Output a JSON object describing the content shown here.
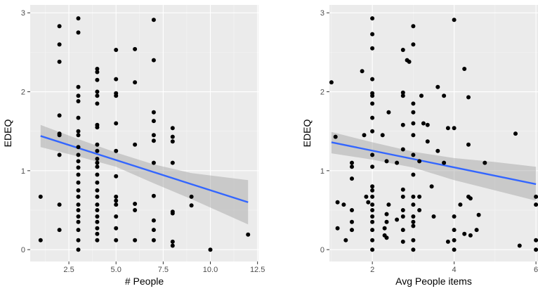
{
  "chart_data": [
    {
      "type": "scatter",
      "xlabel": "# People",
      "ylabel": "EDEQ",
      "xlim": [
        0.45,
        12.55
      ],
      "ylim": [
        -0.15,
        3.1
      ],
      "x_ticks": [
        2.5,
        5.0,
        7.5,
        10.0,
        12.5
      ],
      "x_tick_labels": [
        "2.5",
        "5.0",
        "7.5",
        "10.0",
        "12.5"
      ],
      "y_ticks": [
        0,
        1,
        2,
        3
      ],
      "y_tick_labels": [
        "0",
        "1",
        "2",
        "3"
      ],
      "grid": true,
      "points": [
        [
          1,
          0.67
        ],
        [
          1,
          0.12
        ],
        [
          2,
          2.83
        ],
        [
          2,
          2.6
        ],
        [
          2,
          2.38
        ],
        [
          2,
          1.7
        ],
        [
          2,
          1.47
        ],
        [
          2,
          1.45
        ],
        [
          2,
          1.2
        ],
        [
          2,
          0.57
        ],
        [
          2,
          0.25
        ],
        [
          3,
          2.93
        ],
        [
          3,
          2.75
        ],
        [
          3,
          2.06
        ],
        [
          3,
          1.95
        ],
        [
          3,
          1.88
        ],
        [
          3,
          1.67
        ],
        [
          3,
          1.5
        ],
        [
          3,
          1.45
        ],
        [
          3,
          1.3
        ],
        [
          3,
          1.2
        ],
        [
          3,
          1.12
        ],
        [
          3,
          1.04
        ],
        [
          3,
          0.95
        ],
        [
          3,
          0.85
        ],
        [
          3,
          0.75
        ],
        [
          3,
          0.67
        ],
        [
          3,
          0.57
        ],
        [
          3,
          0.5
        ],
        [
          3,
          0.42
        ],
        [
          3,
          0.35
        ],
        [
          3,
          0.25
        ],
        [
          3,
          0.12
        ],
        [
          3,
          0.0
        ],
        [
          4,
          2.29
        ],
        [
          4,
          2.25
        ],
        [
          4,
          2.15
        ],
        [
          4,
          2.0
        ],
        [
          4,
          1.95
        ],
        [
          4,
          1.85
        ],
        [
          4,
          1.58
        ],
        [
          4,
          1.55
        ],
        [
          4,
          1.33
        ],
        [
          4,
          1.25
        ],
        [
          4,
          1.15
        ],
        [
          4,
          1.1
        ],
        [
          4,
          1.05
        ],
        [
          4,
          0.95
        ],
        [
          4,
          0.85
        ],
        [
          4,
          0.75
        ],
        [
          4,
          0.67
        ],
        [
          4,
          0.57
        ],
        [
          4,
          0.5
        ],
        [
          4,
          0.42
        ],
        [
          4,
          0.35
        ],
        [
          4,
          0.27
        ],
        [
          4,
          0.2
        ],
        [
          4,
          0.12
        ],
        [
          5,
          2.53
        ],
        [
          5,
          2.16
        ],
        [
          5,
          1.98
        ],
        [
          5,
          1.95
        ],
        [
          5,
          1.6
        ],
        [
          5,
          1.25
        ],
        [
          5,
          0.93
        ],
        [
          5,
          0.67
        ],
        [
          5,
          0.62
        ],
        [
          5,
          0.57
        ],
        [
          5,
          0.42
        ],
        [
          5,
          0.27
        ],
        [
          5,
          0.12
        ],
        [
          6,
          2.54
        ],
        [
          6,
          2.12
        ],
        [
          6,
          1.33
        ],
        [
          6,
          0.58
        ],
        [
          6,
          0.5
        ],
        [
          6,
          0.12
        ],
        [
          7,
          2.91
        ],
        [
          7,
          2.4
        ],
        [
          7,
          1.74
        ],
        [
          7,
          1.63
        ],
        [
          7,
          1.45
        ],
        [
          7,
          1.38
        ],
        [
          7,
          1.1
        ],
        [
          7,
          0.68
        ],
        [
          7,
          0.37
        ],
        [
          7,
          0.25
        ],
        [
          7,
          0.12
        ],
        [
          8,
          1.54
        ],
        [
          8,
          1.43
        ],
        [
          8,
          1.37
        ],
        [
          8,
          1.1
        ],
        [
          8,
          0.48
        ],
        [
          8,
          0.46
        ],
        [
          8,
          0.1
        ],
        [
          8,
          0.05
        ],
        [
          9,
          0.67
        ],
        [
          9,
          0.56
        ],
        [
          10,
          0.0
        ],
        [
          12,
          0.19
        ]
      ],
      "fit_line": {
        "x": [
          1,
          12
        ],
        "y": [
          1.44,
          0.6
        ]
      },
      "confidence_band": {
        "x": [
          1,
          3,
          5,
          7,
          9,
          12
        ],
        "upper": [
          1.58,
          1.4,
          1.23,
          1.08,
          0.97,
          0.88
        ],
        "lower": [
          1.3,
          1.18,
          1.05,
          0.84,
          0.64,
          0.32
        ]
      }
    },
    {
      "type": "scatter",
      "xlabel": "Avg People items",
      "ylabel": "EDEQ",
      "xlim": [
        0.95,
        6.05
      ],
      "ylim": [
        -0.15,
        3.1
      ],
      "x_ticks": [
        2,
        4,
        6
      ],
      "x_tick_labels": [
        "2",
        "4",
        "6"
      ],
      "y_ticks": [
        0,
        1,
        2,
        3
      ],
      "y_tick_labels": [
        "0",
        "1",
        "2",
        "3"
      ],
      "grid": true,
      "points": [
        [
          1,
          2.12
        ],
        [
          1.1,
          1.43
        ],
        [
          1.15,
          0.6
        ],
        [
          1.15,
          0.27
        ],
        [
          1.3,
          0.57
        ],
        [
          1.35,
          0.12
        ],
        [
          1.5,
          1.1
        ],
        [
          1.5,
          1.05
        ],
        [
          1.5,
          0.9
        ],
        [
          1.5,
          0.5
        ],
        [
          1.5,
          0.35
        ],
        [
          1.5,
          0.25
        ],
        [
          1.75,
          2.26
        ],
        [
          1.8,
          1.45
        ],
        [
          1.85,
          0.67
        ],
        [
          1.9,
          0.6
        ],
        [
          2,
          2.93
        ],
        [
          2,
          2.73
        ],
        [
          2,
          2.55
        ],
        [
          2,
          2.16
        ],
        [
          2,
          1.98
        ],
        [
          2,
          1.95
        ],
        [
          2,
          1.85
        ],
        [
          2,
          1.67
        ],
        [
          2,
          1.5
        ],
        [
          2,
          1.2
        ],
        [
          2,
          1.05
        ],
        [
          2,
          0.8
        ],
        [
          2,
          0.75
        ],
        [
          2,
          0.67
        ],
        [
          2,
          0.57
        ],
        [
          2,
          0.5
        ],
        [
          2,
          0.42
        ],
        [
          2,
          0.35
        ],
        [
          2,
          0.25
        ],
        [
          2,
          0.12
        ],
        [
          2,
          0.0
        ],
        [
          2.25,
          1.45
        ],
        [
          2.3,
          0.27
        ],
        [
          2.3,
          0.18
        ],
        [
          2.35,
          1.12
        ],
        [
          2.35,
          0.45
        ],
        [
          2.35,
          0.35
        ],
        [
          2.35,
          0.15
        ],
        [
          2.4,
          0.57
        ],
        [
          2.4,
          1.74
        ],
        [
          2.6,
          1.1
        ],
        [
          2.6,
          0.38
        ],
        [
          2.75,
          2.53
        ],
        [
          2.75,
          1.99
        ],
        [
          2.75,
          1.95
        ],
        [
          2.75,
          1.58
        ],
        [
          2.75,
          1.27
        ],
        [
          2.75,
          0.76
        ],
        [
          2.75,
          0.67
        ],
        [
          2.75,
          0.5
        ],
        [
          2.75,
          0.42
        ],
        [
          2.75,
          0.25
        ],
        [
          2.75,
          0.1
        ],
        [
          2.85,
          2.4
        ],
        [
          2.9,
          2.38
        ],
        [
          3,
          2.83
        ],
        [
          3,
          2.6
        ],
        [
          3,
          1.85
        ],
        [
          3,
          1.74
        ],
        [
          3,
          1.6
        ],
        [
          3,
          1.45
        ],
        [
          3,
          1.2
        ],
        [
          3,
          0.95
        ],
        [
          3,
          0.67
        ],
        [
          3,
          0.57
        ],
        [
          3,
          0.42
        ],
        [
          3,
          0.35
        ],
        [
          3,
          0.3
        ],
        [
          3,
          0.12
        ],
        [
          3,
          0.0
        ],
        [
          3.15,
          1.12
        ],
        [
          3.15,
          0.67
        ],
        [
          3.15,
          0.5
        ],
        [
          3.2,
          1.95
        ],
        [
          3.25,
          1.6
        ],
        [
          3.35,
          1.58
        ],
        [
          3.35,
          1.37
        ],
        [
          3.45,
          0.8
        ],
        [
          3.5,
          0.42
        ],
        [
          3.6,
          2.06
        ],
        [
          3.6,
          1.25
        ],
        [
          3.75,
          1.95
        ],
        [
          3.75,
          1.1
        ],
        [
          3.85,
          1.54
        ],
        [
          3.85,
          0.1
        ],
        [
          4,
          2.91
        ],
        [
          4,
          1.54
        ],
        [
          4,
          0.42
        ],
        [
          4,
          0.25
        ],
        [
          4,
          0.12
        ],
        [
          4,
          0.0
        ],
        [
          4.15,
          0.57
        ],
        [
          4.25,
          2.29
        ],
        [
          4.25,
          0.2
        ],
        [
          4.35,
          1.93
        ],
        [
          4.35,
          1.33
        ],
        [
          4.35,
          0.67
        ],
        [
          4.4,
          0.18
        ],
        [
          4.4,
          0.65
        ],
        [
          4.55,
          0.25
        ],
        [
          4.6,
          0.44
        ],
        [
          4.75,
          1.1
        ],
        [
          5.5,
          1.47
        ],
        [
          5.6,
          0.05
        ],
        [
          6,
          0.67
        ],
        [
          6,
          0.57
        ],
        [
          6,
          0.12
        ],
        [
          6,
          0.0
        ]
      ],
      "fit_line": {
        "x": [
          1,
          6
        ],
        "y": [
          1.36,
          0.83
        ]
      },
      "confidence_band": {
        "x": [
          1,
          2,
          3,
          4,
          5,
          6
        ],
        "upper": [
          1.49,
          1.36,
          1.24,
          1.16,
          1.11,
          1.05
        ],
        "lower": [
          1.22,
          1.14,
          1.04,
          0.88,
          0.75,
          0.62
        ]
      }
    }
  ],
  "colors": {
    "panel_bg": "#ebebeb",
    "grid_major": "#ffffff",
    "grid_minor": "#f5f5f5",
    "point": "#000000",
    "fit_line": "#3366ff",
    "band": "#a0a0a0",
    "tick": "#4d4d4d"
  }
}
